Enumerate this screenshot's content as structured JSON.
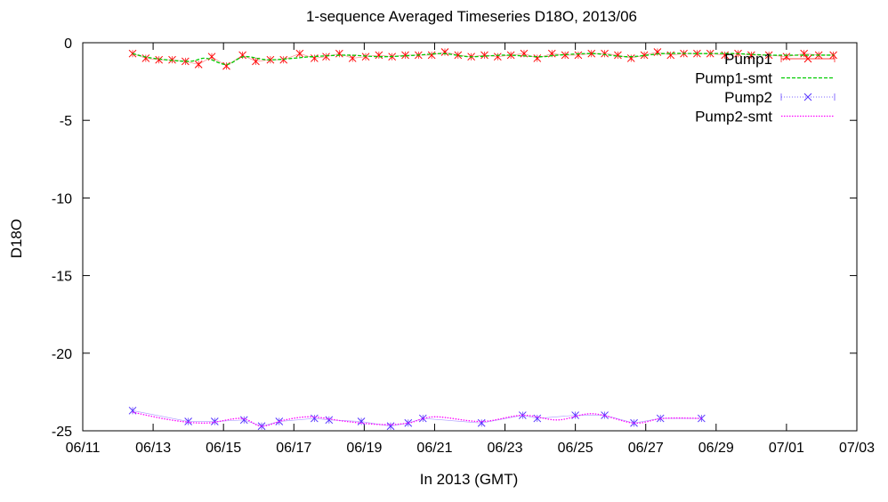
{
  "chart_data": {
    "type": "line",
    "title": "1-sequence Averaged Timeseries D18O, 2013/06",
    "xlabel": "In 2013 (GMT)",
    "ylabel": "D18O",
    "xlim": [
      "2013-06-11",
      "2013-07-03"
    ],
    "ylim": [
      -25,
      0
    ],
    "x_ticks": [
      "06/11",
      "06/13",
      "06/15",
      "06/17",
      "06/19",
      "06/21",
      "06/23",
      "06/25",
      "06/27",
      "06/29",
      "07/01",
      "07/03"
    ],
    "y_ticks": [
      "0",
      "-5",
      "-10",
      "-15",
      "-20",
      "-25"
    ],
    "legend_position": "top-right",
    "grid": false,
    "series": [
      {
        "name": "Pump1",
        "color": "#ff0000",
        "style": "points-with-errorbars",
        "marker": "x",
        "points": [
          [
            "2013-06-12 10:00",
            -0.7
          ],
          [
            "2013-06-12 19:00",
            -1.0
          ],
          [
            "2013-06-13 04:00",
            -1.1
          ],
          [
            "2013-06-13 13:00",
            -1.1
          ],
          [
            "2013-06-13 22:00",
            -1.2
          ],
          [
            "2013-06-14 07:00",
            -1.4
          ],
          [
            "2013-06-14 16:00",
            -0.9
          ],
          [
            "2013-06-15 02:00",
            -1.5
          ],
          [
            "2013-06-15 13:00",
            -0.8
          ],
          [
            "2013-06-15 22:00",
            -1.2
          ],
          [
            "2013-06-16 08:00",
            -1.1
          ],
          [
            "2013-06-16 17:00",
            -1.1
          ],
          [
            "2013-06-17 04:00",
            -0.7
          ],
          [
            "2013-06-17 14:00",
            -1.0
          ],
          [
            "2013-06-17 22:00",
            -0.9
          ],
          [
            "2013-06-18 07:00",
            -0.7
          ],
          [
            "2013-06-18 16:00",
            -1.0
          ],
          [
            "2013-06-19 01:00",
            -0.9
          ],
          [
            "2013-06-19 10:00",
            -0.8
          ],
          [
            "2013-06-19 19:00",
            -0.9
          ],
          [
            "2013-06-20 04:00",
            -0.8
          ],
          [
            "2013-06-20 13:00",
            -0.8
          ],
          [
            "2013-06-20 22:00",
            -0.8
          ],
          [
            "2013-06-21 07:00",
            -0.6
          ],
          [
            "2013-06-21 16:00",
            -0.8
          ],
          [
            "2013-06-22 01:00",
            -0.9
          ],
          [
            "2013-06-22 10:00",
            -0.8
          ],
          [
            "2013-06-22 19:00",
            -0.9
          ],
          [
            "2013-06-23 04:00",
            -0.8
          ],
          [
            "2013-06-23 13:00",
            -0.7
          ],
          [
            "2013-06-23 22:00",
            -1.0
          ],
          [
            "2013-06-24 08:00",
            -0.7
          ],
          [
            "2013-06-24 17:00",
            -0.8
          ],
          [
            "2013-06-25 02:00",
            -0.8
          ],
          [
            "2013-06-25 11:00",
            -0.7
          ],
          [
            "2013-06-25 20:00",
            -0.7
          ],
          [
            "2013-06-26 05:00",
            -0.8
          ],
          [
            "2013-06-26 14:00",
            -1.0
          ],
          [
            "2013-06-26 23:00",
            -0.8
          ],
          [
            "2013-06-27 08:00",
            -0.6
          ],
          [
            "2013-06-27 17:00",
            -0.8
          ],
          [
            "2013-06-28 02:00",
            -0.7
          ],
          [
            "2013-06-28 11:00",
            -0.7
          ],
          [
            "2013-06-28 20:00",
            -0.7
          ],
          [
            "2013-06-29 06:00",
            -0.8
          ],
          [
            "2013-06-29 15:00",
            -0.7
          ],
          [
            "2013-06-30 00:00",
            -0.8
          ],
          [
            "2013-06-30 12:00",
            -0.8
          ],
          [
            "2013-07-01 00:00",
            -0.9
          ],
          [
            "2013-07-01 12:00",
            -0.7
          ],
          [
            "2013-07-01 22:00",
            -0.8
          ],
          [
            "2013-07-02 08:00",
            -0.8
          ]
        ]
      },
      {
        "name": "Pump1-smt",
        "color": "#00cc00",
        "style": "dashed-smooth",
        "points": [
          [
            "2013-06-12 10:00",
            -0.7
          ],
          [
            "2013-06-13 00:00",
            -1.0
          ],
          [
            "2013-06-14 00:00",
            -1.2
          ],
          [
            "2013-06-14 12:00",
            -1.0
          ],
          [
            "2013-06-15 02:00",
            -1.4
          ],
          [
            "2013-06-15 14:00",
            -0.9
          ],
          [
            "2013-06-16 06:00",
            -1.1
          ],
          [
            "2013-06-17 00:00",
            -1.0
          ],
          [
            "2013-06-17 12:00",
            -0.9
          ],
          [
            "2013-06-18 12:00",
            -0.8
          ],
          [
            "2013-06-19 12:00",
            -0.9
          ],
          [
            "2013-06-20 12:00",
            -0.8
          ],
          [
            "2013-06-21 06:00",
            -0.7
          ],
          [
            "2013-06-22 00:00",
            -0.9
          ],
          [
            "2013-06-23 00:00",
            -0.8
          ],
          [
            "2013-06-24 00:00",
            -0.9
          ],
          [
            "2013-06-24 12:00",
            -0.8
          ],
          [
            "2013-06-25 12:00",
            -0.7
          ],
          [
            "2013-06-26 12:00",
            -0.9
          ],
          [
            "2013-06-27 12:00",
            -0.7
          ],
          [
            "2013-06-28 12:00",
            -0.7
          ],
          [
            "2013-06-29 12:00",
            -0.7
          ],
          [
            "2013-06-30 12:00",
            -0.8
          ],
          [
            "2013-07-01 12:00",
            -0.8
          ],
          [
            "2013-07-02 08:00",
            -0.8
          ]
        ]
      },
      {
        "name": "Pump2",
        "color": "#5533ff",
        "style": "points-with-errorbars",
        "marker": "x",
        "points": [
          [
            "2013-06-12 10:00",
            -23.7
          ],
          [
            "2013-06-14 00:00",
            -24.4
          ],
          [
            "2013-06-14 18:00",
            -24.4
          ],
          [
            "2013-06-15 14:00",
            -24.3
          ],
          [
            "2013-06-16 02:00",
            -24.7
          ],
          [
            "2013-06-16 14:00",
            -24.4
          ],
          [
            "2013-06-17 14:00",
            -24.2
          ],
          [
            "2013-06-18 00:00",
            -24.3
          ],
          [
            "2013-06-18 22:00",
            -24.4
          ],
          [
            "2013-06-19 18:00",
            -24.7
          ],
          [
            "2013-06-20 06:00",
            -24.5
          ],
          [
            "2013-06-20 16:00",
            -24.2
          ],
          [
            "2013-06-22 08:00",
            -24.5
          ],
          [
            "2013-06-23 12:00",
            -24.0
          ],
          [
            "2013-06-23 22:00",
            -24.2
          ],
          [
            "2013-06-25 00:00",
            -24.0
          ],
          [
            "2013-06-25 20:00",
            -24.0
          ],
          [
            "2013-06-26 16:00",
            -24.5
          ],
          [
            "2013-06-27 10:00",
            -24.2
          ],
          [
            "2013-06-28 14:00",
            -24.2
          ]
        ]
      },
      {
        "name": "Pump2-smt",
        "color": "#ff00ff",
        "style": "dotted-smooth",
        "points": [
          [
            "2013-06-12 10:00",
            -23.8
          ],
          [
            "2013-06-13 12:00",
            -24.3
          ],
          [
            "2013-06-14 12:00",
            -24.5
          ],
          [
            "2013-06-15 12:00",
            -24.2
          ],
          [
            "2013-06-16 02:00",
            -24.7
          ],
          [
            "2013-06-16 18:00",
            -24.3
          ],
          [
            "2013-06-17 12:00",
            -24.1
          ],
          [
            "2013-06-18 12:00",
            -24.4
          ],
          [
            "2013-06-19 12:00",
            -24.6
          ],
          [
            "2013-06-20 06:00",
            -24.5
          ],
          [
            "2013-06-21 00:00",
            -24.1
          ],
          [
            "2013-06-22 08:00",
            -24.4
          ],
          [
            "2013-06-23 12:00",
            -24.0
          ],
          [
            "2013-06-24 12:00",
            -24.3
          ],
          [
            "2013-06-25 12:00",
            -23.9
          ],
          [
            "2013-06-26 16:00",
            -24.5
          ],
          [
            "2013-06-27 12:00",
            -24.2
          ],
          [
            "2013-06-28 14:00",
            -24.2
          ]
        ]
      }
    ]
  }
}
